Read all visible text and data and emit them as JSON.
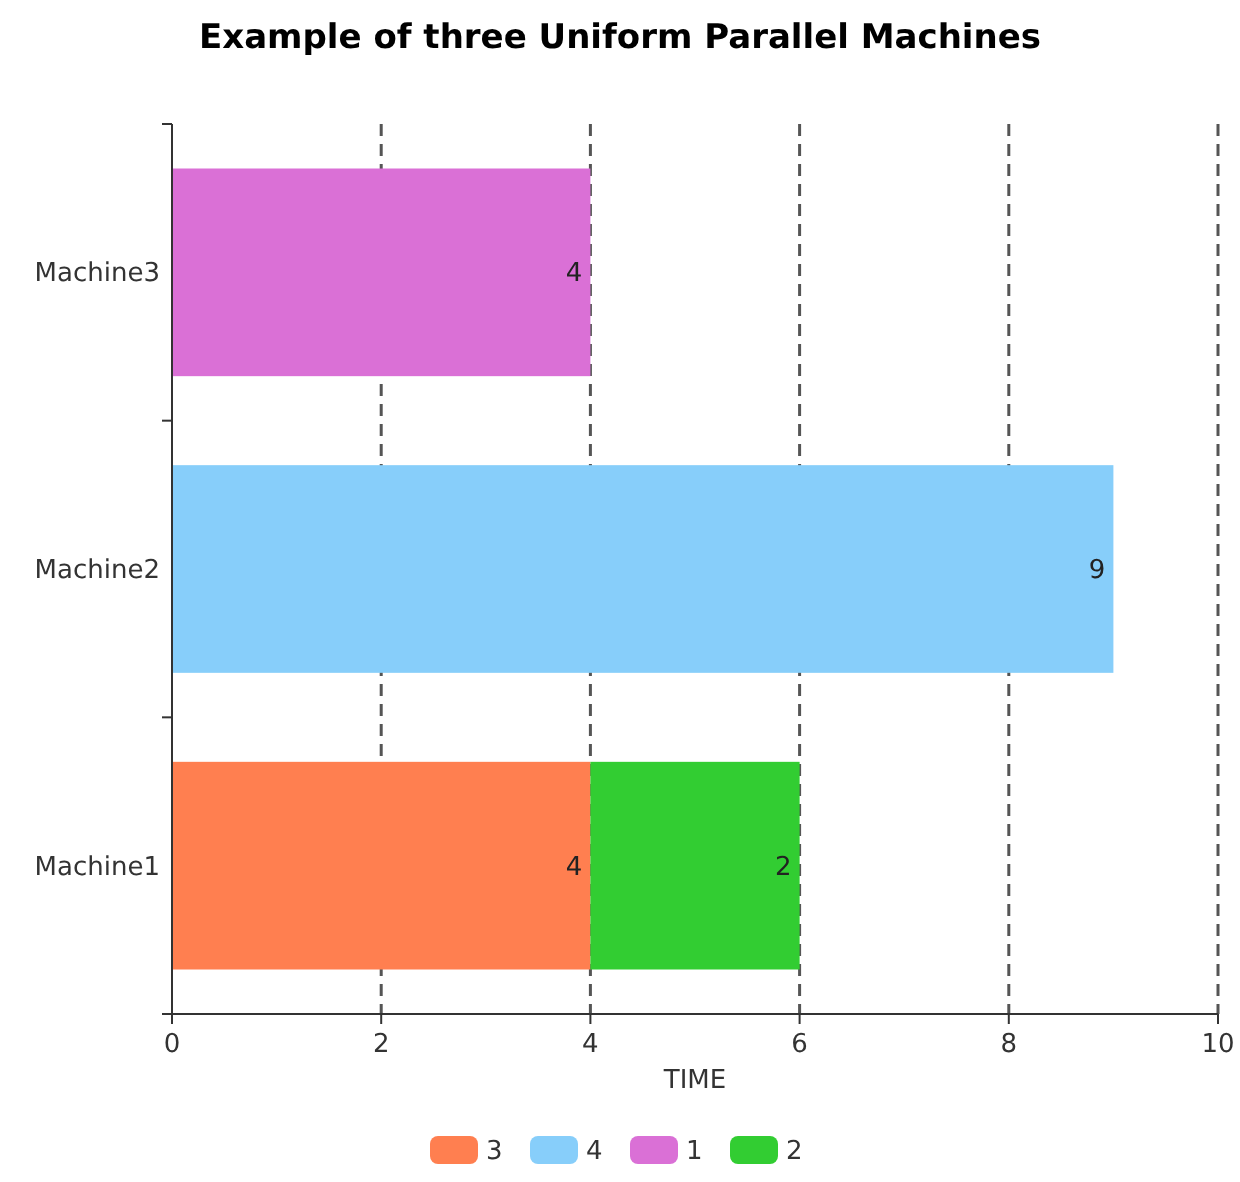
{
  "chart_data": {
    "type": "bar",
    "title": "Example of three Uniform Parallel Machines",
    "orientation": "horizontal",
    "stacked": true,
    "categories": [
      "Machine3",
      "Machine2",
      "Machine1"
    ],
    "series": [
      {
        "name": "3",
        "color": "#ff7f50",
        "values": [
          null,
          null,
          4
        ]
      },
      {
        "name": "4",
        "color": "#87cefa",
        "values": [
          null,
          9,
          null
        ]
      },
      {
        "name": "1",
        "color": "#da70d6",
        "values": [
          4,
          null,
          null
        ]
      },
      {
        "name": "2",
        "color": "#32cd32",
        "values": [
          null,
          null,
          2
        ]
      }
    ],
    "xlim": [
      0,
      10
    ],
    "xticks": [
      0,
      2,
      4,
      6,
      8,
      10
    ],
    "xlabel": "TIME",
    "grid": "x",
    "line_style": "dashed",
    "data_labels": true,
    "legend": "bottom"
  }
}
